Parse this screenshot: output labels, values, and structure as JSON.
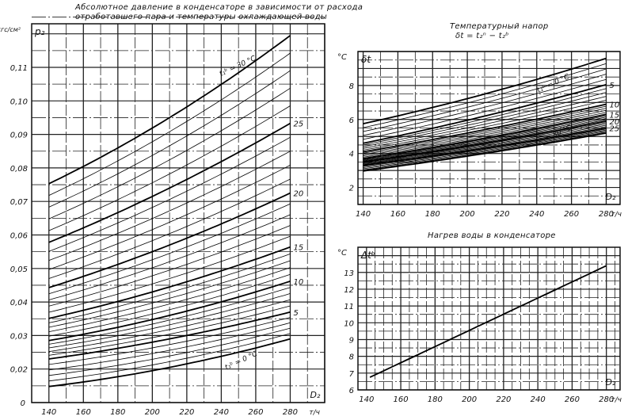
{
  "chart_data": [
    {
      "type": "line",
      "title_line1": "Абсолютное давление в конденсаторе в зависимости от расхода",
      "title_line2": "отработавшего пара и температуры охлаждающей воды",
      "ylabel_unit": "кгс/см²",
      "ylabel": "p₂",
      "xlabel": "D₂",
      "xunit": "т/ч",
      "xlim": [
        130,
        300
      ],
      "ylim": [
        0.01,
        0.123
      ],
      "xticks": [
        140,
        160,
        180,
        200,
        220,
        240,
        260,
        280
      ],
      "yticks": [
        0.02,
        0.03,
        0.04,
        0.05,
        0.06,
        0.07,
        0.08,
        0.09,
        0.1,
        0.11
      ],
      "ytick_labels": [
        "0,02",
        "0,03",
        "0,04",
        "0,05",
        "0,06",
        "0,07",
        "0,08",
        "0,09",
        "0,10",
        "0,11"
      ],
      "y_bottom_label": "0",
      "grid": true,
      "grid_x_step": 10,
      "grid_y_step": 0.005,
      "minor_curve_step_c": 1,
      "series": [
        {
          "name": "0",
          "label": "t₁ᵇ = 0 °C",
          "x": [
            140,
            210,
            280
          ],
          "values": [
            0.0148,
            0.0205,
            0.029
          ]
        },
        {
          "name": "5",
          "label": "5",
          "x": [
            140,
            210,
            280
          ],
          "values": [
            0.023,
            0.029,
            0.037
          ]
        },
        {
          "name": "10",
          "label": "10",
          "x": [
            140,
            210,
            280
          ],
          "values": [
            0.0285,
            0.036,
            0.0462
          ]
        },
        {
          "name": "15",
          "label": "15",
          "x": [
            140,
            210,
            280
          ],
          "values": [
            0.0351,
            0.0445,
            0.0564
          ]
        },
        {
          "name": "20",
          "label": "20",
          "x": [
            140,
            210,
            280
          ],
          "values": [
            0.0443,
            0.057,
            0.0725
          ]
        },
        {
          "name": "25",
          "label": "25",
          "x": [
            140,
            210,
            280
          ],
          "values": [
            0.0578,
            0.074,
            0.0933
          ]
        },
        {
          "name": "30",
          "label": "t₁ᵇ = 30 °C",
          "x": [
            140,
            210,
            280
          ],
          "values": [
            0.0753,
            0.095,
            0.1195
          ]
        }
      ]
    },
    {
      "type": "line",
      "title_line1": "Температурный напор",
      "title_line2": "δt = t₂ⁿ − t₂ᵇ",
      "ylabel_unit": "°C",
      "ylabel": "δt",
      "xlabel": "D₂",
      "xunit": "т/ч",
      "xlim": [
        137,
        288
      ],
      "ylim": [
        1,
        10
      ],
      "xticks": [
        140,
        160,
        180,
        200,
        220,
        240,
        260,
        280
      ],
      "yticks": [
        2,
        4,
        6,
        8
      ],
      "ytick_labels": [
        "2",
        "4",
        "6",
        "8"
      ],
      "grid": true,
      "grid_x_step": 10,
      "grid_y_step": 0.5,
      "minor_curve_step_c": 1,
      "series": [
        {
          "name": "0",
          "label": "t₁ᵇ = 0 °C",
          "x": [
            140,
            210,
            280
          ],
          "values": [
            5.75,
            7.5,
            9.6
          ]
        },
        {
          "name": "5",
          "label": "5",
          "x": [
            140,
            210,
            280
          ],
          "values": [
            4.6,
            6.2,
            8.05
          ]
        },
        {
          "name": "10",
          "label": "10",
          "x": [
            140,
            210,
            280
          ],
          "values": [
            4.1,
            5.4,
            6.9
          ]
        },
        {
          "name": "15",
          "label": "15",
          "x": [
            140,
            210,
            280
          ],
          "values": [
            3.7,
            4.9,
            6.3
          ]
        },
        {
          "name": "20",
          "label": "20",
          "x": [
            140,
            210,
            280
          ],
          "values": [
            3.5,
            4.6,
            5.9
          ]
        },
        {
          "name": "25",
          "label": "25",
          "x": [
            140,
            210,
            280
          ],
          "values": [
            3.3,
            4.3,
            5.5
          ]
        },
        {
          "name": "30",
          "label": "t₁ᵇ = 30 °C",
          "x": [
            140,
            210,
            280
          ],
          "values": [
            2.97,
            4.0,
            5.2
          ]
        }
      ]
    },
    {
      "type": "line",
      "title_line1": "Нагрев воды в конденсаторе",
      "ylabel_unit": "°C",
      "ylabel": "Δtᵇ",
      "xlabel": "D₂",
      "xunit": "т/ч",
      "xlim": [
        135,
        288
      ],
      "ylim": [
        6,
        14.5
      ],
      "xticks": [
        140,
        160,
        180,
        200,
        220,
        240,
        260,
        280
      ],
      "yticks": [
        6,
        7,
        8,
        9,
        10,
        11,
        12,
        13
      ],
      "ytick_labels": [
        "6",
        "7",
        "8",
        "9",
        "10",
        "11",
        "12",
        "13"
      ],
      "grid": true,
      "grid_x_step": 5,
      "grid_y_step": 0.5,
      "series": [
        {
          "name": "Δt",
          "x": [
            142,
            280
          ],
          "values": [
            6.75,
            13.4
          ]
        }
      ]
    }
  ]
}
